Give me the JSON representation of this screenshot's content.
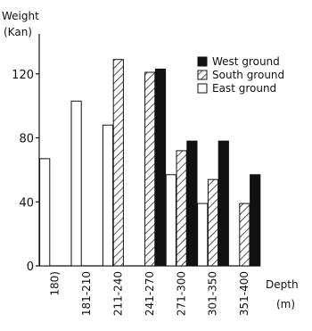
{
  "chart_data": {
    "type": "bar",
    "title": "",
    "ylabel_line1": "Weight",
    "ylabel_line2": "(Kan)",
    "xlabel_line1": "Depth",
    "xlabel_line2": "(m)",
    "ylim": [
      0,
      145
    ],
    "yticks": [
      0,
      40,
      80,
      120
    ],
    "categories": [
      "180)",
      "181-210",
      "211-240",
      "241-270",
      "271-300",
      "301-350",
      "351-400"
    ],
    "series": [
      {
        "name": "East ground",
        "fill": "white",
        "values": [
          67,
          103,
          88,
          null,
          57,
          39,
          null
        ]
      },
      {
        "name": "South ground",
        "fill": "hatched",
        "values": [
          null,
          null,
          129,
          121,
          72,
          54,
          39
        ]
      },
      {
        "name": "West ground",
        "fill": "black",
        "values": [
          null,
          null,
          null,
          123,
          78,
          78,
          57
        ]
      }
    ],
    "legend_position": "top-right",
    "colors": {
      "ink": "#111111",
      "paper": "#ffffff"
    }
  }
}
